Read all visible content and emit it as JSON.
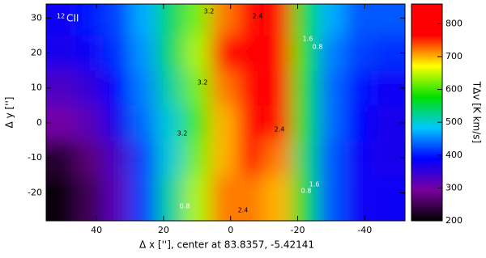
{
  "chart_data": {
    "type": "heatmap",
    "title_sup": "12",
    "title": "CII",
    "x_label": "Δ x [''], center at 83.8357, -5.42141",
    "y_label": "Δ y ['']",
    "colorbar_label": "TΔv [K km/s]",
    "x": [
      50,
      42,
      34,
      26,
      18,
      10,
      2,
      -6,
      -14,
      -22,
      -30,
      -38,
      -46
    ],
    "y": [
      30,
      20,
      10,
      0,
      -10,
      -20
    ],
    "values": [
      [
        380,
        400,
        420,
        470,
        540,
        620,
        720,
        820,
        760,
        560,
        470,
        430,
        430
      ],
      [
        370,
        380,
        410,
        460,
        540,
        640,
        780,
        840,
        790,
        580,
        450,
        420,
        410
      ],
      [
        330,
        350,
        390,
        450,
        520,
        620,
        720,
        830,
        780,
        560,
        440,
        400,
        380
      ],
      [
        300,
        320,
        370,
        440,
        500,
        600,
        700,
        800,
        760,
        560,
        440,
        390,
        370
      ],
      [
        230,
        270,
        330,
        420,
        500,
        620,
        700,
        760,
        720,
        540,
        430,
        380,
        370
      ],
      [
        210,
        250,
        320,
        420,
        520,
        640,
        720,
        720,
        700,
        560,
        430,
        380,
        380
      ]
    ],
    "xlim": [
      55,
      -52
    ],
    "ylim": [
      -28,
      34
    ],
    "xticks": [
      40,
      20,
      0,
      -20,
      -40
    ],
    "yticks": [
      -20,
      -10,
      0,
      10,
      20,
      30
    ],
    "clim": [
      200,
      860
    ],
    "cticks": [
      200,
      300,
      400,
      500,
      600,
      700,
      800
    ],
    "colormap": [
      "#000000",
      "#7a00a0",
      "#0000ff",
      "#00c8ff",
      "#00e000",
      "#ffff00",
      "#ff0000",
      "#ff0000"
    ],
    "contour_levels": [
      3.2,
      2.4,
      1.6,
      0.8
    ]
  }
}
